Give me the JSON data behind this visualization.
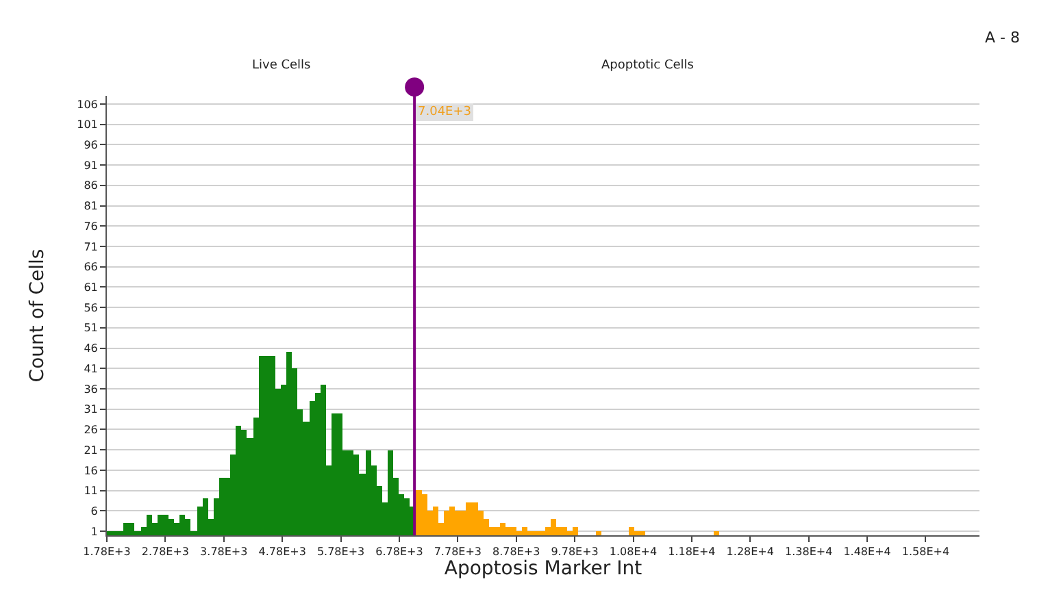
{
  "chart_data": {
    "type": "histogram",
    "xlabel": "Apoptosis Marker Int",
    "ylabel": "Count of Cells",
    "annotations": [
      "Live Cells",
      "Apoptotic Cells",
      "A - 8"
    ],
    "bins": [
      1780,
      1876,
      1972,
      2068,
      2164,
      2260,
      2356,
      2452,
      2548,
      2644,
      2740,
      2836,
      2932,
      3028,
      3124,
      3220,
      3316,
      3412,
      3508,
      3604,
      3700,
      3796,
      3892,
      3988,
      4084,
      4180,
      4276,
      4372,
      4468,
      4564,
      4660,
      4756,
      4852,
      4948,
      5044,
      5140,
      5236,
      5332,
      5428,
      5524,
      5620,
      5716,
      5812,
      5908,
      6004,
      6100,
      6196,
      6292,
      6388,
      6484,
      6580,
      6676,
      6772,
      6868,
      6964,
      7060,
      7156,
      7252,
      7348,
      7444,
      7540,
      7636,
      7732,
      7828,
      7924,
      8020,
      8116,
      8212,
      8308,
      8404,
      8500,
      8596,
      8692,
      8788,
      8884,
      8980,
      9076,
      9172,
      9268,
      9364,
      9460,
      9556,
      9652,
      9748,
      9844,
      9940,
      10036,
      10132,
      10228,
      10324,
      10420,
      10516,
      10612,
      10708,
      10804,
      10900,
      10996,
      11092,
      11188,
      11284,
      11380,
      11476,
      11572,
      11668,
      11764,
      11860,
      11956,
      12052,
      12148,
      12244
    ],
    "values": [
      1,
      1,
      1,
      3,
      3,
      1,
      2,
      5,
      3,
      5,
      5,
      4,
      3,
      5,
      4,
      1,
      7,
      9,
      4,
      9,
      14,
      14,
      20,
      27,
      26,
      24,
      29,
      44,
      44,
      44,
      36,
      37,
      45,
      41,
      31,
      28,
      33,
      35,
      37,
      17,
      30,
      30,
      21,
      21,
      20,
      15,
      21,
      17,
      12,
      8,
      21,
      14,
      10,
      9,
      7,
      11,
      10,
      6,
      7,
      3,
      6,
      7,
      6,
      6,
      8,
      8,
      6,
      4,
      2,
      2,
      3,
      2,
      2,
      1,
      2,
      1,
      1,
      1,
      2,
      4,
      2,
      2,
      1,
      2,
      0,
      0,
      0,
      1,
      0,
      0,
      0,
      0,
      0,
      2,
      1,
      1,
      0,
      0,
      0,
      0,
      0,
      0,
      0,
      0,
      0,
      0,
      0,
      0,
      1
    ],
    "colors": [
      "#0f850f",
      "#0f850f",
      "#0f850f",
      "#0f850f",
      "#0f850f",
      "#0f850f",
      "#0f850f",
      "#0f850f",
      "#0f850f",
      "#0f850f",
      "#0f850f",
      "#0f850f",
      "#0f850f",
      "#0f850f",
      "#0f850f",
      "#0f850f",
      "#0f850f",
      "#0f850f",
      "#0f850f",
      "#0f850f",
      "#0f850f",
      "#0f850f",
      "#0f850f",
      "#0f850f",
      "#0f850f",
      "#0f850f",
      "#0f850f",
      "#0f850f",
      "#0f850f",
      "#0f850f",
      "#0f850f",
      "#0f850f",
      "#0f850f",
      "#0f850f",
      "#0f850f",
      "#0f850f",
      "#0f850f",
      "#0f850f",
      "#0f850f",
      "#0f850f",
      "#0f850f",
      "#0f850f",
      "#0f850f",
      "#0f850f",
      "#0f850f",
      "#0f850f",
      "#0f850f",
      "#0f850f",
      "#0f850f",
      "#0f850f",
      "#0f850f",
      "#0f850f",
      "#0f850f",
      "#0f850f",
      "#0f850f",
      "#ffa500",
      "#ffa500",
      "#ffa500",
      "#ffa500",
      "#ffa500",
      "#ffa500",
      "#ffa500",
      "#ffa500",
      "#ffa500",
      "#ffa500",
      "#ffa500",
      "#ffa500",
      "#ffa500",
      "#ffa500",
      "#ffa500",
      "#ffa500",
      "#ffa500",
      "#ffa500",
      "#ffa500",
      "#ffa500",
      "#ffa500",
      "#ffa500",
      "#ffa500",
      "#ffa500",
      "#ffa500",
      "#ffa500",
      "#ffa500",
      "#ffa500",
      "#ffa500",
      "#ffa500",
      "#ffa500",
      "#ffa500",
      "#ffa500",
      "#ffa500",
      "#ffa500",
      "#ffa500",
      "#ffa500",
      "#ffa500",
      "#ffa500",
      "#ffa500",
      "#ffa500",
      "#ffa500",
      "#ffa500",
      "#ffa500",
      "#ffa500",
      "#ffa500",
      "#ffa500",
      "#ffa500",
      "#ffa500",
      "#ffa500",
      "#ffa500",
      "#ffa500",
      "#ffa500",
      "#ffa500"
    ],
    "xlim": [
      1780,
      16700
    ],
    "xticks": [
      {
        "value": 1780,
        "label": "1.78E+3"
      },
      {
        "value": 2780,
        "label": "2.78E+3"
      },
      {
        "value": 3780,
        "label": "3.78E+3"
      },
      {
        "value": 4780,
        "label": "4.78E+3"
      },
      {
        "value": 5780,
        "label": "5.78E+3"
      },
      {
        "value": 6780,
        "label": "6.78E+3"
      },
      {
        "value": 7780,
        "label": "7.78E+3"
      },
      {
        "value": 8780,
        "label": "8.78E+3"
      },
      {
        "value": 9780,
        "label": "9.78E+3"
      },
      {
        "value": 10780,
        "label": "1.08E+4"
      },
      {
        "value": 11780,
        "label": "1.18E+4"
      },
      {
        "value": 12780,
        "label": "1.28E+4"
      },
      {
        "value": 13780,
        "label": "1.38E+4"
      },
      {
        "value": 14780,
        "label": "1.48E+4"
      },
      {
        "value": 15780,
        "label": "1.58E+4"
      }
    ],
    "ylim": [
      0,
      108
    ],
    "yticks": [
      1,
      6,
      11,
      16,
      21,
      26,
      31,
      36,
      41,
      46,
      51,
      56,
      61,
      66,
      71,
      76,
      81,
      86,
      91,
      96,
      101,
      106
    ],
    "grid": "y",
    "ref_lines": [
      {
        "axis": "x",
        "value": 7040,
        "label": "7.04E+3",
        "color": "#800080"
      }
    ]
  }
}
